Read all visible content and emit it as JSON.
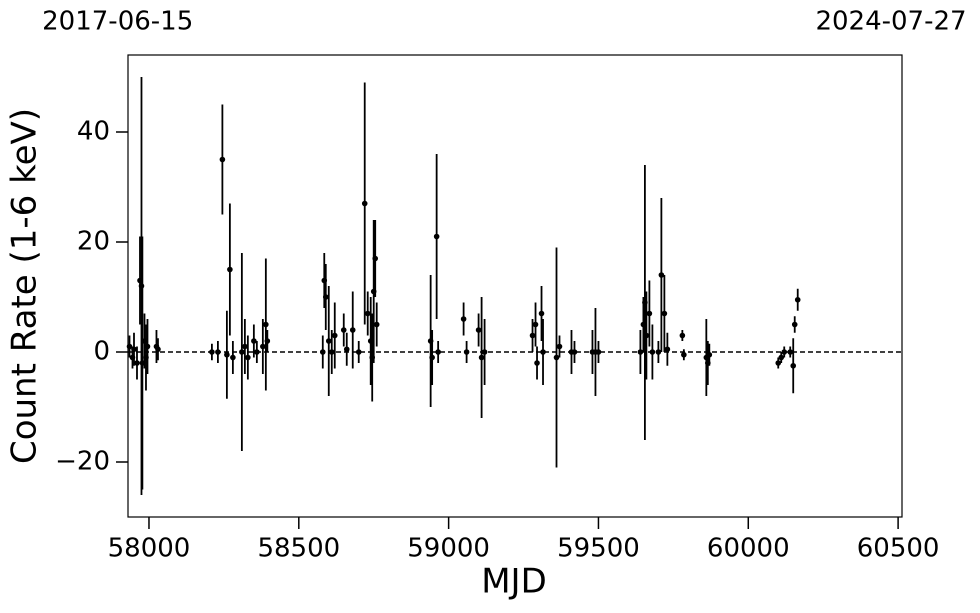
{
  "chart_data": {
    "type": "scatter",
    "xlabel": "MJD",
    "ylabel": "Count Rate (1-6 keV)",
    "top_xticks": [
      {
        "value": 57919,
        "label": "2017-06-15"
      },
      {
        "value": 60518,
        "label": "2024-07-27"
      }
    ],
    "xlim": [
      57930,
      60513
    ],
    "ylim": [
      -30,
      54
    ],
    "xticks": [
      58000,
      58500,
      59000,
      59500,
      60000,
      60500
    ],
    "yticks": [
      {
        "value": -20,
        "label": "−20"
      },
      0,
      20,
      40
    ],
    "hline": 0,
    "color": "#000000",
    "x": [
      57935,
      57945,
      57950,
      57960,
      57970,
      57975,
      57978,
      57985,
      57990,
      57995,
      58025,
      58030,
      58210,
      58230,
      58245,
      58260,
      58270,
      58280,
      58310,
      58320,
      58330,
      58350,
      58360,
      58380,
      58390,
      58395,
      58580,
      58585,
      58590,
      58600,
      58610,
      58620,
      58650,
      58660,
      58680,
      58700,
      58720,
      58730,
      58740,
      58745,
      58750,
      58755,
      58760,
      58940,
      58945,
      58960,
      58965,
      59050,
      59060,
      59100,
      59110,
      59120,
      59280,
      59290,
      59295,
      59310,
      59315,
      59360,
      59370,
      59410,
      59420,
      59480,
      59490,
      59500,
      59640,
      59650,
      59655,
      59660,
      59670,
      59680,
      59700,
      59710,
      59720,
      59730,
      59780,
      59785,
      59860,
      59865,
      59870,
      60100,
      60110,
      60120,
      60140,
      60150,
      60155,
      60165
    ],
    "values": [
      1,
      -1,
      0.5,
      -2,
      13,
      12,
      -2,
      2,
      -1,
      1,
      1,
      0.5,
      0,
      0,
      35,
      -0.5,
      15,
      -1,
      0,
      1,
      -1,
      2,
      0,
      1,
      5,
      2,
      0,
      13,
      10,
      2,
      0,
      3,
      4,
      0.5,
      4,
      0,
      27,
      7,
      2,
      -1,
      11,
      17,
      5,
      2,
      -1,
      21,
      0,
      6,
      0,
      4,
      -1,
      0,
      3,
      5,
      -2,
      7,
      0,
      -1,
      1,
      0,
      0,
      0,
      0,
      0,
      0,
      5,
      9,
      3,
      7,
      0,
      0,
      14,
      7,
      0.5,
      3,
      -0.5,
      -1,
      -2,
      -0.5,
      -2,
      -1,
      0,
      0,
      -2.5,
      5,
      9.5
    ],
    "errors": [
      2,
      2,
      3,
      3,
      8,
      38,
      23,
      5,
      6,
      5,
      3,
      2,
      1.5,
      2,
      10,
      8,
      12,
      3,
      18,
      5,
      4,
      3,
      2,
      5,
      12,
      2,
      3,
      5,
      6,
      10,
      4,
      6,
      3,
      3,
      7,
      2,
      22,
      4,
      8,
      8,
      13,
      7,
      4,
      12,
      5,
      15,
      2,
      3,
      2,
      3,
      11,
      6,
      3,
      4,
      3,
      5,
      6,
      20,
      2,
      4,
      2,
      4,
      8,
      2,
      4,
      5,
      25,
      8,
      6,
      5,
      2,
      14,
      7,
      3,
      1,
      1,
      7,
      4,
      2,
      1,
      1,
      1,
      1,
      5,
      1.5,
      2
    ]
  }
}
